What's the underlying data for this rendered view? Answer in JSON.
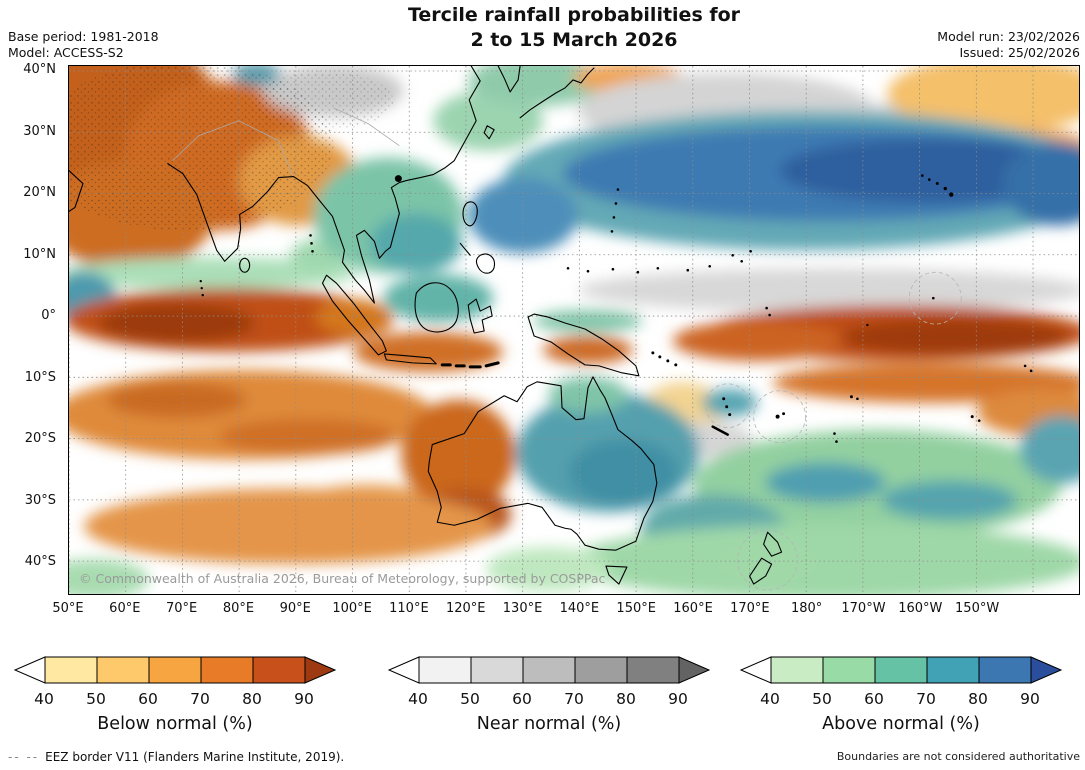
{
  "header": {
    "title_line1": "Tercile rainfall probabilities for",
    "title_line2": "2 to 15 March 2026",
    "base_period": "Base period: 1981-2018",
    "model": "Model: ACCESS-S2",
    "model_run": "Model run: 23/02/2026",
    "issued": "Issued: 25/02/2026"
  },
  "map": {
    "copyright": "© Commonwealth of Australia 2026, Bureau of Meteorology, supported by COSPPac",
    "y_ticks": [
      "40°N",
      "30°N",
      "20°N",
      "10°N",
      "0°",
      "10°S",
      "20°S",
      "30°S",
      "40°S"
    ],
    "x_ticks": [
      "50°E",
      "60°E",
      "70°E",
      "80°E",
      "90°E",
      "100°E",
      "110°E",
      "120°E",
      "130°E",
      "140°E",
      "150°E",
      "160°E",
      "170°E",
      "180°",
      "170°W",
      "160°W",
      "150°W"
    ]
  },
  "legends": [
    {
      "label": "Below normal (%)",
      "ticks": [
        "40",
        "50",
        "60",
        "70",
        "80",
        "90"
      ],
      "left_arrow": "#ffffff",
      "box_colors": [
        "#ffe8a1",
        "#fdc96b",
        "#f7a541",
        "#e77b27",
        "#c8511b"
      ],
      "right_arrow": "#9e3a12"
    },
    {
      "label": "Near normal (%)",
      "ticks": [
        "40",
        "50",
        "60",
        "70",
        "80",
        "90"
      ],
      "left_arrow": "#ffffff",
      "box_colors": [
        "#f2f2f2",
        "#d9d9d9",
        "#bdbdbd",
        "#9e9e9e",
        "#808080"
      ],
      "right_arrow": "#636363"
    },
    {
      "label": "Above normal (%)",
      "ticks": [
        "40",
        "50",
        "60",
        "70",
        "80",
        "90"
      ],
      "left_arrow": "#ffffff",
      "box_colors": [
        "#c9ecc5",
        "#98dba6",
        "#65c2a5",
        "#41a1b5",
        "#3c77b2"
      ],
      "right_arrow": "#2a4e9c"
    }
  ],
  "footer": {
    "eez_dashes": "--  --",
    "eez_note": "EEZ border V11 (Flanders Marine Institute, 2019).",
    "boundaries_note": "Boundaries are not considered authoritative"
  }
}
